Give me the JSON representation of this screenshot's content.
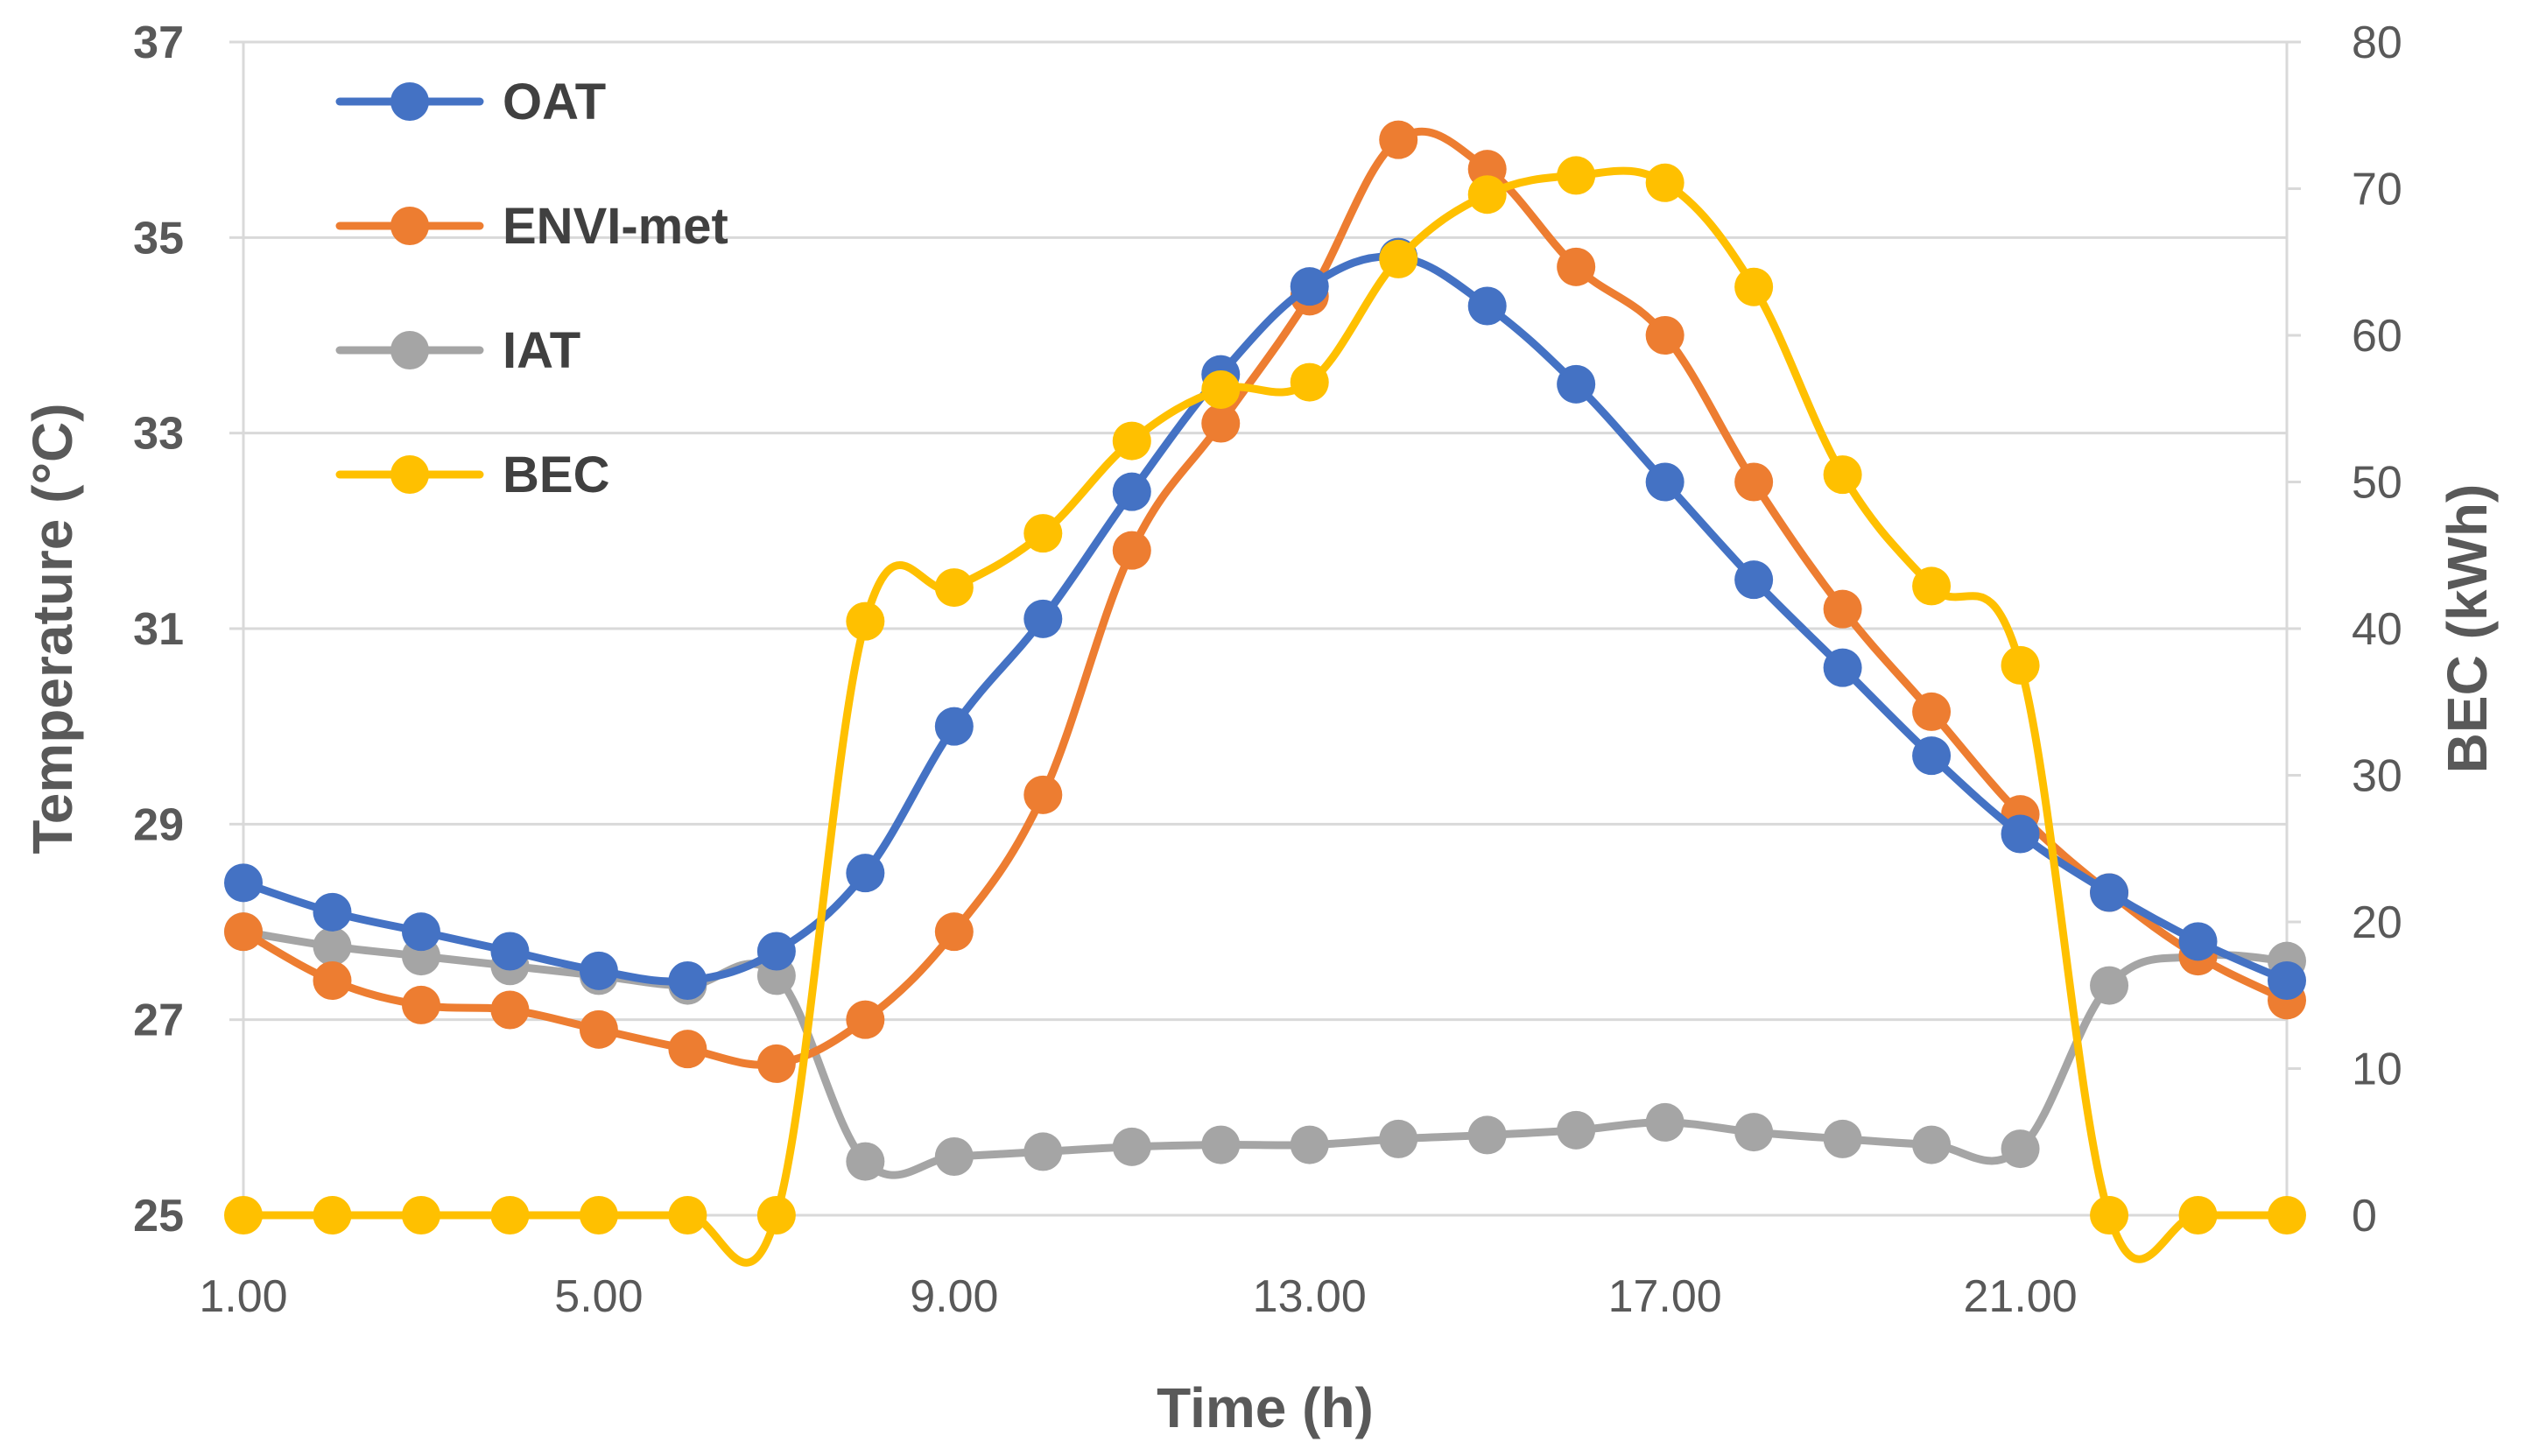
{
  "chart_data": {
    "type": "line",
    "title": "",
    "xlabel": "Time (h)",
    "ylabel": "Temperature (°C)",
    "ylabel_right": "BEC (kWh)",
    "x": [
      1,
      2,
      3,
      4,
      5,
      6,
      7,
      8,
      9,
      10,
      11,
      12,
      13,
      14,
      15,
      16,
      17,
      18,
      19,
      20,
      21,
      22,
      23,
      24
    ],
    "xticks": [
      "1.00",
      "5.00",
      "9.00",
      "13.00",
      "17.00",
      "21.00"
    ],
    "xlim": [
      1,
      24
    ],
    "ylim": [
      25,
      37
    ],
    "yticks": [
      "25",
      "27",
      "29",
      "31",
      "33",
      "35",
      "37"
    ],
    "ylim_right": [
      0,
      80
    ],
    "yticks_right": [
      "0",
      "10",
      "20",
      "30",
      "40",
      "50",
      "60",
      "70",
      "80"
    ],
    "grid": true,
    "legend_position": "top-left",
    "series": [
      {
        "name": "OAT",
        "axis": "left",
        "color": "#4472C4",
        "values": [
          28.4,
          28.1,
          27.9,
          27.7,
          27.5,
          27.4,
          27.7,
          28.5,
          30.0,
          31.1,
          32.4,
          33.6,
          34.5,
          34.8,
          34.3,
          33.5,
          32.5,
          31.5,
          30.6,
          29.7,
          28.9,
          28.3,
          27.8,
          27.4
        ]
      },
      {
        "name": "ENVI-met",
        "axis": "left",
        "color": "#ED7D31",
        "values": [
          27.9,
          27.4,
          27.15,
          27.1,
          26.9,
          26.7,
          26.55,
          27.0,
          27.9,
          29.3,
          31.8,
          33.1,
          34.4,
          36.0,
          35.7,
          34.7,
          34.0,
          32.5,
          31.2,
          30.15,
          29.1,
          28.3,
          27.65,
          27.2
        ]
      },
      {
        "name": "IAT",
        "axis": "left",
        "color": "#A5A5A5",
        "values": [
          27.9,
          27.75,
          27.65,
          27.55,
          27.45,
          27.35,
          27.45,
          25.55,
          25.6,
          25.65,
          25.7,
          25.72,
          25.72,
          25.78,
          25.82,
          25.87,
          25.95,
          25.85,
          25.78,
          25.72,
          25.68,
          27.35,
          27.65,
          27.6
        ]
      },
      {
        "name": "BEC",
        "axis": "right",
        "color": "#FFC000",
        "values": [
          0,
          0,
          0,
          0,
          0,
          0,
          0,
          40.5,
          42.8,
          46.5,
          52.8,
          56.3,
          56.8,
          65.2,
          69.6,
          70.9,
          70.4,
          63.3,
          50.5,
          42.9,
          37.5,
          0,
          0,
          0
        ]
      }
    ]
  }
}
